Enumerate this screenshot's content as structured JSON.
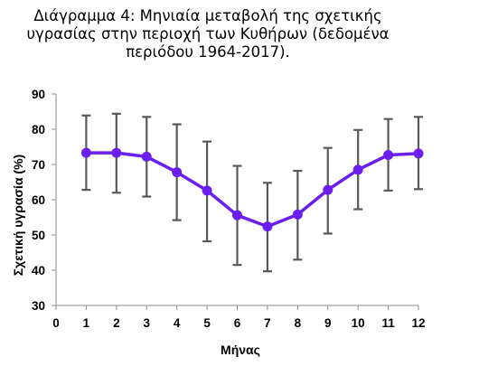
{
  "chart_data": {
    "type": "line",
    "title_lines": [
      "Διάγραμμα 4: Μηνιαία μεταβολή της σχετικής",
      "υγρασίας στην περιοχή των Κυθήρων (δεδομένα",
      "περιόδου 1964-2017)."
    ],
    "xlabel": "Μήνας",
    "ylabel": "Σχετική υγρασία (%)",
    "xlim": [
      0,
      12
    ],
    "ylim": [
      30,
      90
    ],
    "x_ticks": [
      0,
      1,
      2,
      3,
      4,
      5,
      6,
      7,
      8,
      9,
      10,
      11,
      12
    ],
    "y_ticks": [
      30,
      40,
      50,
      60,
      70,
      80,
      90
    ],
    "grid": false,
    "series": [
      {
        "x": [
          1,
          2,
          3,
          4,
          5,
          6,
          7,
          8,
          9,
          10,
          11,
          12
        ],
        "values": [
          73.3,
          73.3,
          72.2,
          67.8,
          62.6,
          55.6,
          52.4,
          55.8,
          62.8,
          68.5,
          72.7,
          73.1
        ],
        "error_low": [
          62.8,
          62.0,
          60.9,
          54.2,
          48.2,
          41.5,
          39.7,
          43.0,
          50.4,
          57.3,
          62.6,
          63.0
        ],
        "error_high": [
          83.9,
          84.4,
          83.5,
          81.4,
          76.5,
          69.6,
          64.8,
          68.2,
          74.7,
          79.8,
          82.9,
          83.5
        ],
        "color": "#6a1ff0",
        "error_color": "#595959"
      }
    ]
  }
}
